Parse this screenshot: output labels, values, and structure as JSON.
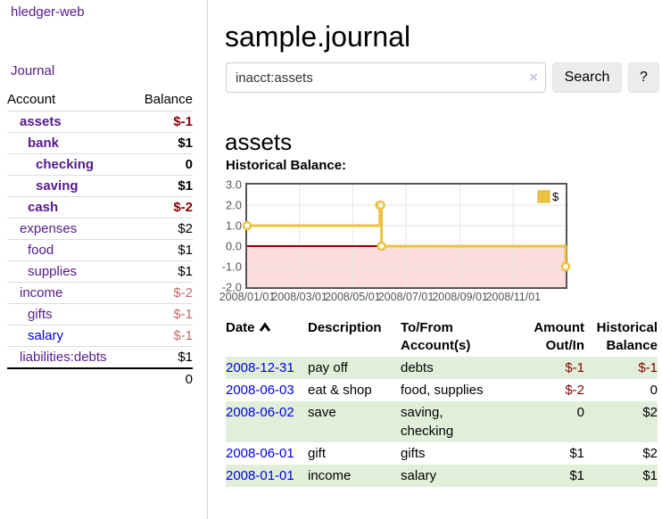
{
  "app": {
    "title": "hledger-web",
    "nav_journal": "Journal"
  },
  "sidebar": {
    "table": {
      "headers": [
        "Account",
        "Balance"
      ],
      "rows": [
        {
          "account": "assets",
          "indent": 1,
          "bold": true,
          "color": "purple",
          "balance": "$-1",
          "bclass": "neg-strong"
        },
        {
          "account": "bank",
          "indent": 2,
          "bold": true,
          "color": "purple",
          "balance": "$1",
          "bclass": "pos"
        },
        {
          "account": "checking",
          "indent": 3,
          "bold": true,
          "color": "purple",
          "balance": "0",
          "bclass": "pos"
        },
        {
          "account": "saving",
          "indent": 3,
          "bold": true,
          "color": "purple",
          "balance": "$1",
          "bclass": "pos"
        },
        {
          "account": "cash",
          "indent": 2,
          "bold": true,
          "color": "purple",
          "balance": "$-2",
          "bclass": "neg-strong"
        },
        {
          "account": "expenses",
          "indent": 1,
          "bold": false,
          "color": "purple",
          "balance": "$2",
          "bclass": "pos"
        },
        {
          "account": "food",
          "indent": 2,
          "bold": false,
          "color": "purple",
          "balance": "$1",
          "bclass": "pos"
        },
        {
          "account": "supplies",
          "indent": 2,
          "bold": false,
          "color": "purple",
          "balance": "$1",
          "bclass": "pos"
        },
        {
          "account": "income",
          "indent": 1,
          "bold": false,
          "color": "purple",
          "balance": "$-2",
          "bclass": "neg-weak"
        },
        {
          "account": "gifts",
          "indent": 2,
          "bold": false,
          "color": "purple",
          "balance": "$-1",
          "bclass": "neg-weak"
        },
        {
          "account": "salary",
          "indent": 2,
          "bold": false,
          "color": "blue",
          "balance": "$-1",
          "bclass": "neg-weak"
        },
        {
          "account": "liabilities:debts",
          "indent": 1,
          "bold": false,
          "color": "purple",
          "balance": "$1",
          "bclass": "pos"
        }
      ],
      "total": "0"
    }
  },
  "main": {
    "title": "sample.journal",
    "search": {
      "value": "inacct:assets",
      "clear_icon": "×",
      "button_label": "Search",
      "help_label": "?"
    },
    "account_heading": "assets",
    "chart_label": "Historical Balance:"
  },
  "chart_data": {
    "type": "line",
    "title": "Historical Balance",
    "step": true,
    "ylim": [
      -2,
      3
    ],
    "x_day_range": [
      0,
      365
    ],
    "yticks": [
      {
        "label": "3.0",
        "value": 3
      },
      {
        "label": "2.0",
        "value": 2
      },
      {
        "label": "1.0",
        "value": 1
      },
      {
        "label": "0.0",
        "value": 0
      },
      {
        "label": "-1.0",
        "value": -1
      },
      {
        "label": "-2.0",
        "value": -2
      }
    ],
    "xticks": [
      {
        "label": "2008/01/01",
        "day": 0
      },
      {
        "label": "2008/03/01",
        "day": 60
      },
      {
        "label": "2008/05/01",
        "day": 121
      },
      {
        "label": "2008/07/01",
        "day": 182
      },
      {
        "label": "2008/09/01",
        "day": 244
      },
      {
        "label": "2008/11/01",
        "day": 305
      }
    ],
    "series": [
      {
        "name": "$",
        "color": "#edc240",
        "points": [
          {
            "date": "2008-01-01",
            "day": 0,
            "value": 1
          },
          {
            "date": "2008-06-01",
            "day": 152,
            "value": 2
          },
          {
            "date": "2008-06-02",
            "day": 153,
            "value": 2
          },
          {
            "date": "2008-06-03",
            "day": 154,
            "value": 0
          },
          {
            "date": "2008-12-31",
            "day": 365,
            "value": -1
          }
        ]
      }
    ],
    "legend": {
      "label": "$",
      "position": "top-right"
    },
    "grid": true,
    "negative_region_color": "#fcdcdc",
    "zero_line_color": "#8b0000",
    "gridline_color": "#e6e6e6",
    "border_color": "#545454",
    "tick_text_color": "#545454"
  },
  "register": {
    "headers": [
      {
        "label": "Date",
        "sorted": "asc"
      },
      {
        "label": "Description"
      },
      {
        "label": "To/From Account(s)"
      },
      {
        "label": "Amount Out/In"
      },
      {
        "label": "Historical Balance"
      }
    ],
    "rows": [
      {
        "date": "2008-12-31",
        "description": "pay off",
        "accounts": "debts",
        "amount": "$-1",
        "amount_neg": true,
        "balance": "$-1",
        "balance_neg": true
      },
      {
        "date": "2008-06-03",
        "description": "eat & shop",
        "accounts": "food, supplies",
        "amount": "$-2",
        "amount_neg": true,
        "balance": "0",
        "balance_neg": false
      },
      {
        "date": "2008-06-02",
        "description": "save",
        "accounts": "saving, checking",
        "amount": "0",
        "amount_neg": false,
        "balance": "$2",
        "balance_neg": false
      },
      {
        "date": "2008-06-01",
        "description": "gift",
        "accounts": "gifts",
        "amount": "$1",
        "amount_neg": false,
        "balance": "$2",
        "balance_neg": false
      },
      {
        "date": "2008-01-01",
        "description": "income",
        "accounts": "salary",
        "amount": "$1",
        "amount_neg": false,
        "balance": "$1",
        "balance_neg": false
      }
    ]
  },
  "colors": {
    "link_purple": "#551a8b",
    "link_blue": "#0000e0",
    "negative_strong": "#880000",
    "negative_weak": "#c06b6b",
    "row_green": "#e1efda",
    "series_gold": "#edc240",
    "negative_region": "#fcdcdc",
    "zero_line": "#8b0000"
  }
}
